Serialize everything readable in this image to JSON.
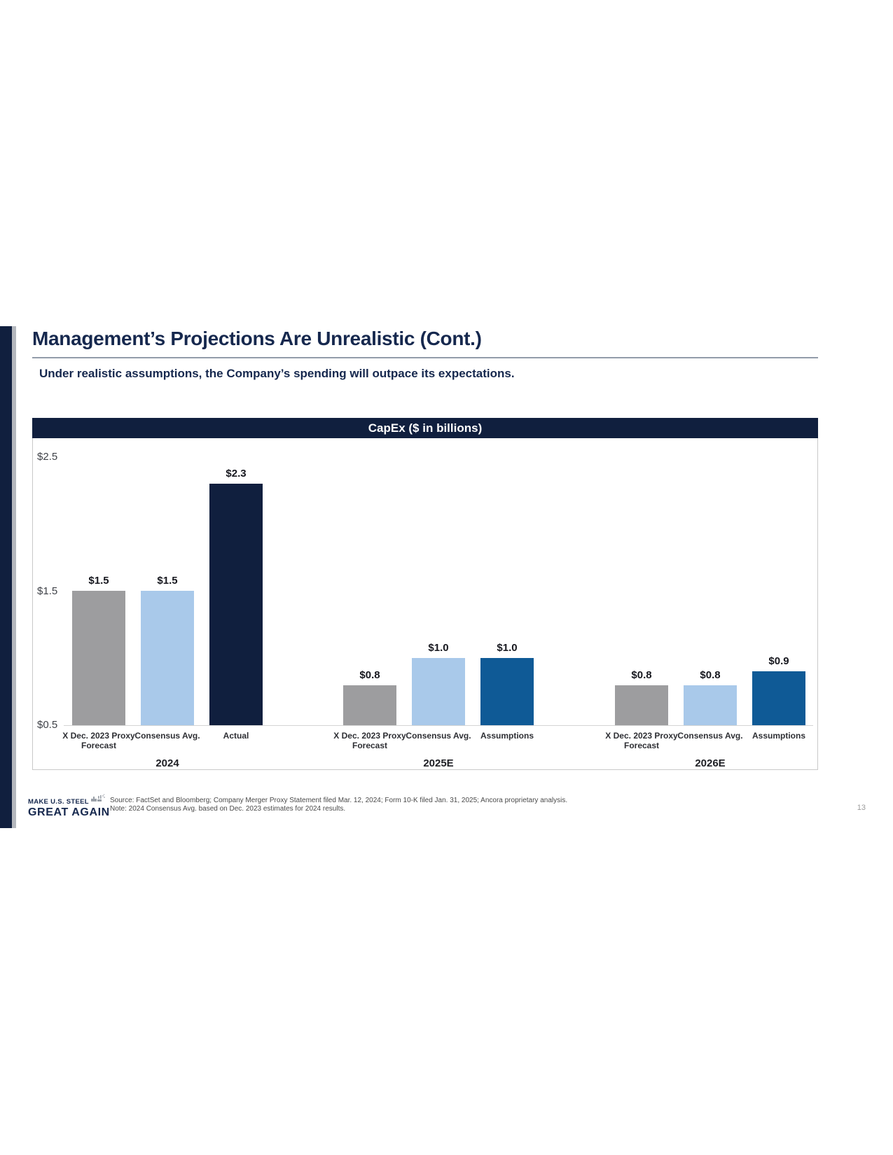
{
  "page": {
    "number": "13"
  },
  "slide": {
    "title": "Management’s Projections Are Unrealistic (Cont.)",
    "subtitle": "Under realistic assumptions, the Company’s spending will outpace its expectations.",
    "footer": {
      "logo_line1": "MAKE U.S. STEEL",
      "logo_line2": "GREAT AGAIN",
      "source_line1": "Source: FactSet and Bloomberg; Company Merger Proxy Statement filed Mar. 12, 2024; Form 10-K filed Jan. 31, 2025; Ancora proprietary analysis.",
      "source_line2": "Note: 2024 Consensus Avg. based on Dec. 2023 estimates for 2024 results."
    }
  },
  "colors": {
    "navy": "#101f3e",
    "title_navy": "#16284e",
    "gray_bar": "#9d9d9f",
    "light_blue": "#a9c9ea",
    "medium_blue": "#0f5a96"
  },
  "chart_data": {
    "type": "bar",
    "title": "CapEx ($ in billions)",
    "xlabel": "",
    "ylabel": "",
    "ylim": [
      0.5,
      2.5
    ],
    "grid": false,
    "legend": "none",
    "y_ticks": [
      {
        "value": 2.5,
        "label": "$2.5"
      },
      {
        "value": 1.5,
        "label": "$1.5"
      },
      {
        "value": 0.5,
        "label": "$0.5"
      }
    ],
    "groups": [
      {
        "label": "2024",
        "bars": [
          {
            "category": "X Dec. 2023 Proxy Forecast",
            "value": 1.5,
            "data_label": "$1.5",
            "color_key": "gray_bar"
          },
          {
            "category": "Consensus Avg.",
            "value": 1.5,
            "data_label": "$1.5",
            "color_key": "light_blue"
          },
          {
            "category": "Actual",
            "value": 2.3,
            "data_label": "$2.3",
            "color_key": "navy"
          }
        ]
      },
      {
        "label": "2025E",
        "bars": [
          {
            "category": "X Dec. 2023 Proxy Forecast",
            "value": 0.8,
            "data_label": "$0.8",
            "color_key": "gray_bar"
          },
          {
            "category": "Consensus Avg.",
            "value": 1.0,
            "data_label": "$1.0",
            "color_key": "light_blue"
          },
          {
            "category": "Assumptions",
            "value": 1.0,
            "data_label": "$1.0",
            "color_key": "medium_blue"
          }
        ]
      },
      {
        "label": "2026E",
        "bars": [
          {
            "category": "X Dec. 2023 Proxy Forecast",
            "value": 0.8,
            "data_label": "$0.8",
            "color_key": "gray_bar"
          },
          {
            "category": "Consensus Avg.",
            "value": 0.8,
            "data_label": "$0.8",
            "color_key": "light_blue"
          },
          {
            "category": "Assumptions",
            "value": 0.9,
            "data_label": "$0.9",
            "color_key": "medium_blue"
          }
        ]
      }
    ]
  }
}
